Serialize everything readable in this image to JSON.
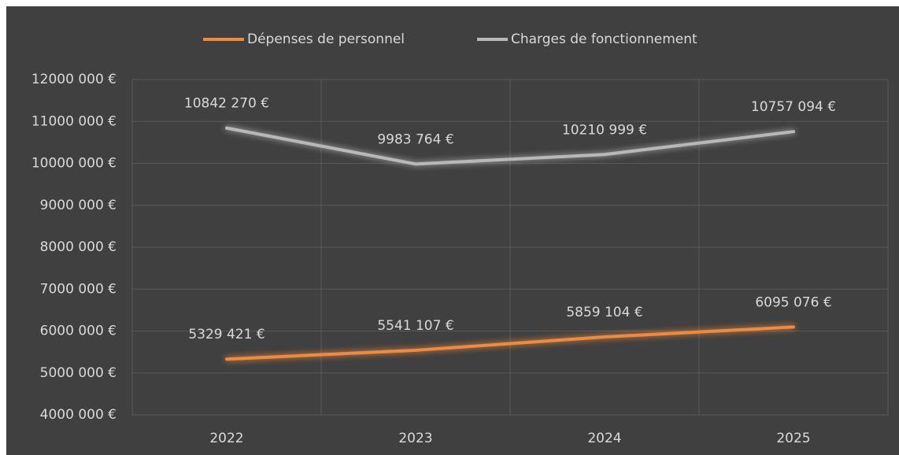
{
  "chart_data": {
    "type": "line",
    "categories": [
      "2022",
      "2023",
      "2024",
      "2025"
    ],
    "series": [
      {
        "name": "Dépenses de personnel",
        "color": "#f08a3c",
        "values": [
          5329421,
          5541107,
          5859104,
          6095076
        ],
        "value_labels": [
          "5329 421 €",
          "5541 107 €",
          "5859 104 €",
          "6095 076 €"
        ]
      },
      {
        "name": "Charges de fonctionnement",
        "color": "#b8b8b8",
        "values": [
          10842270,
          9983764,
          10210999,
          10757094
        ],
        "value_labels": [
          "10842 270 €",
          "9983 764 €",
          "10210 999 €",
          "10757 094 €"
        ]
      }
    ],
    "ylim": [
      4000000,
      12000000
    ],
    "yticks": [
      {
        "value": 4000000,
        "label": "4000 000 €"
      },
      {
        "value": 5000000,
        "label": "5000 000 €"
      },
      {
        "value": 6000000,
        "label": "6000 000 €"
      },
      {
        "value": 7000000,
        "label": "7000 000 €"
      },
      {
        "value": 8000000,
        "label": "8000 000 €"
      },
      {
        "value": 9000000,
        "label": "9000 000 €"
      },
      {
        "value": 10000000,
        "label": "10000 000 €"
      },
      {
        "value": 11000000,
        "label": "11000 000 €"
      },
      {
        "value": 12000000,
        "label": "12000 000 €"
      }
    ],
    "grid": true,
    "legend": "top"
  }
}
